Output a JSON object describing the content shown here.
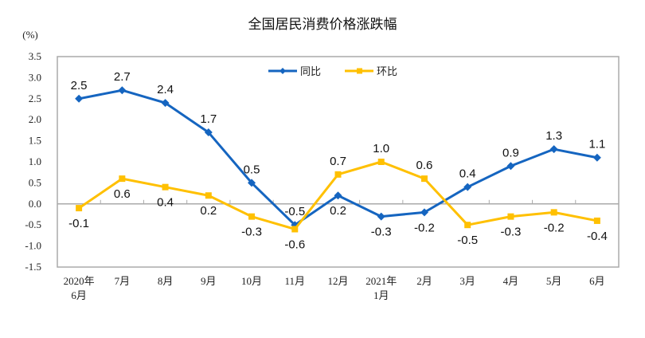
{
  "chart_data": {
    "type": "line",
    "title": "全国居民消费价格涨跌幅",
    "ylabel": "(%)",
    "xlabel": "",
    "ylim": [
      -1.5,
      3.5
    ],
    "yticks": [
      "3.5",
      "3.0",
      "2.5",
      "2.0",
      "1.5",
      "1.0",
      "0.5",
      "0.0",
      "-0.5",
      "-1.0",
      "-1.5"
    ],
    "categories": [
      [
        "2020年",
        "6月"
      ],
      [
        "7月"
      ],
      [
        "8月"
      ],
      [
        "9月"
      ],
      [
        "10月"
      ],
      [
        "11月"
      ],
      [
        "12月"
      ],
      [
        "2021年",
        "1月"
      ],
      [
        "2月"
      ],
      [
        "3月"
      ],
      [
        "4月"
      ],
      [
        "5月"
      ],
      [
        "6月"
      ]
    ],
    "grid": false,
    "legend": "top-center",
    "series": [
      {
        "name": "同比",
        "color": "#1565C0",
        "marker": "diamond",
        "values": [
          2.5,
          2.7,
          2.4,
          1.7,
          0.5,
          -0.5,
          0.2,
          -0.3,
          -0.2,
          0.4,
          0.9,
          1.3,
          1.1
        ],
        "labels": [
          "2.5",
          "2.7",
          "2.4",
          "1.7",
          "0.5",
          "-0.5",
          "0.2",
          "-0.3",
          "-0.2",
          "0.4",
          "0.9",
          "1.3",
          "1.1"
        ]
      },
      {
        "name": "环比",
        "color": "#FFC000",
        "marker": "square",
        "values": [
          -0.1,
          0.6,
          0.4,
          0.2,
          -0.3,
          -0.6,
          0.7,
          1.0,
          0.6,
          -0.5,
          -0.3,
          -0.2,
          -0.4
        ],
        "labels": [
          "-0.1",
          "0.6",
          "0.4",
          "0.2",
          "-0.3",
          "-0.6",
          "0.7",
          "1.0",
          "0.6",
          "-0.5",
          "-0.3",
          "-0.2",
          "-0.4"
        ]
      }
    ]
  }
}
